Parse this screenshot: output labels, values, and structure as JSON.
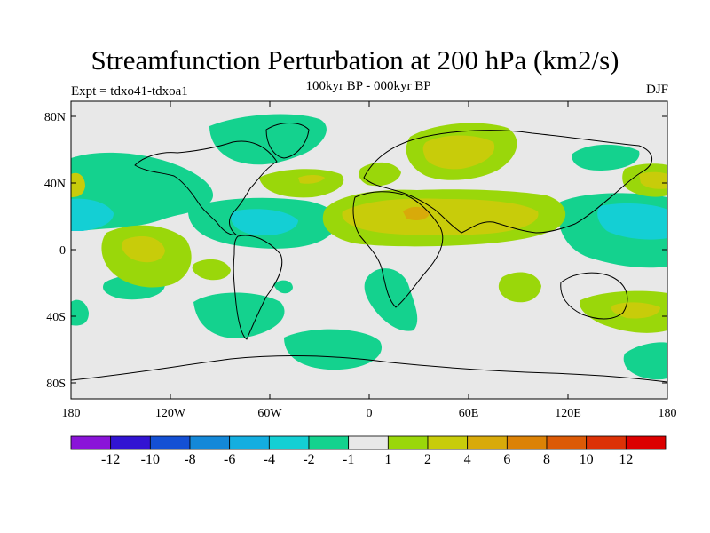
{
  "title": "Streamfunction Perturbation at 200 hPa (km2/s)",
  "experiment": "Expt = tdxo41-tdxoa1",
  "period": "100kyr BP - 000kyr BP",
  "season": "DJF",
  "lat_labels": [
    "80N",
    "40N",
    "0",
    "40S",
    "80S"
  ],
  "lon_labels": [
    "180",
    "120W",
    "60W",
    "0",
    "60E",
    "120E",
    "180"
  ],
  "colorbar": {
    "labels": [
      "-12",
      "-10",
      "-8",
      "-6",
      "-4",
      "-2",
      "-1",
      "1",
      "2",
      "4",
      "6",
      "8",
      "10",
      "12"
    ],
    "colors": [
      "#8a14d8",
      "#3214d2",
      "#1450d4",
      "#1488d8",
      "#14aee0",
      "#14cfd4",
      "#14d28e",
      "#e8e8e8",
      "#9ad70a",
      "#c8cc0a",
      "#d8aa0a",
      "#dc8206",
      "#dc5a06",
      "#dc3206",
      "#dc0000"
    ]
  }
}
